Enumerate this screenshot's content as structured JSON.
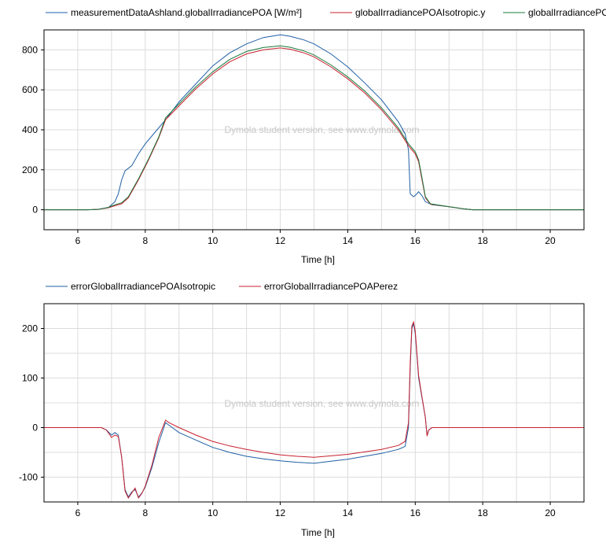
{
  "watermark": "Dymola student version, see www.dymola.com",
  "chart_data": [
    {
      "type": "line",
      "xlabel": "Time [h]",
      "ylabel": "",
      "xlim": [
        5,
        21
      ],
      "ylim": [
        -100,
        900
      ],
      "xticks": [
        6,
        8,
        10,
        12,
        14,
        16,
        18,
        20
      ],
      "yticks": [
        0,
        200,
        400,
        600,
        800
      ],
      "grid": true,
      "legend": "top",
      "series": [
        {
          "name": "measurementDataAshland.globalIrradiancePOA [W/m²]",
          "color": "#1f5fa5",
          "points": [
            [
              5,
              0
            ],
            [
              6.3,
              0
            ],
            [
              6.6,
              2
            ],
            [
              6.9,
              10
            ],
            [
              7.0,
              25
            ],
            [
              7.1,
              40
            ],
            [
              7.2,
              80
            ],
            [
              7.3,
              150
            ],
            [
              7.4,
              195
            ],
            [
              7.6,
              220
            ],
            [
              7.8,
              280
            ],
            [
              8.0,
              330
            ],
            [
              8.3,
              390
            ],
            [
              8.6,
              450
            ],
            [
              9.0,
              540
            ],
            [
              9.5,
              630
            ],
            [
              10.0,
              720
            ],
            [
              10.5,
              785
            ],
            [
              11.0,
              830
            ],
            [
              11.5,
              862
            ],
            [
              12.0,
              875
            ],
            [
              12.3,
              868
            ],
            [
              12.7,
              850
            ],
            [
              13.0,
              830
            ],
            [
              13.5,
              780
            ],
            [
              14.0,
              715
            ],
            [
              14.5,
              635
            ],
            [
              15.0,
              550
            ],
            [
              15.5,
              440
            ],
            [
              15.7,
              380
            ],
            [
              15.8,
              300
            ],
            [
              15.85,
              80
            ],
            [
              15.95,
              65
            ],
            [
              16.05,
              80
            ],
            [
              16.1,
              90
            ],
            [
              16.2,
              70
            ],
            [
              16.3,
              40
            ],
            [
              16.5,
              25
            ],
            [
              17.0,
              15
            ],
            [
              17.4,
              5
            ],
            [
              17.7,
              0
            ],
            [
              21,
              0
            ]
          ]
        },
        {
          "name": "globalIrradiancePOAIsotropic.y",
          "color": "#c8202e",
          "points": [
            [
              5,
              0
            ],
            [
              6.3,
              0
            ],
            [
              6.6,
              2
            ],
            [
              6.9,
              10
            ],
            [
              7.1,
              20
            ],
            [
              7.3,
              30
            ],
            [
              7.5,
              60
            ],
            [
              7.8,
              150
            ],
            [
              8.1,
              250
            ],
            [
              8.4,
              360
            ],
            [
              8.6,
              450
            ],
            [
              9.0,
              520
            ],
            [
              9.5,
              605
            ],
            [
              10.0,
              680
            ],
            [
              10.5,
              740
            ],
            [
              11.0,
              780
            ],
            [
              11.5,
              800
            ],
            [
              12.0,
              810
            ],
            [
              12.3,
              803
            ],
            [
              12.7,
              785
            ],
            [
              13.0,
              765
            ],
            [
              13.5,
              715
            ],
            [
              14.0,
              655
            ],
            [
              14.5,
              585
            ],
            [
              15.0,
              500
            ],
            [
              15.5,
              400
            ],
            [
              15.8,
              320
            ],
            [
              16.0,
              280
            ],
            [
              16.1,
              240
            ],
            [
              16.2,
              150
            ],
            [
              16.3,
              60
            ],
            [
              16.45,
              28
            ],
            [
              17.0,
              15
            ],
            [
              17.4,
              5
            ],
            [
              17.7,
              0
            ],
            [
              21,
              0
            ]
          ]
        },
        {
          "name": "globalIrradiancePOAPerez.y",
          "color": "#1a7a3c",
          "points": [
            [
              5,
              0
            ],
            [
              6.3,
              0
            ],
            [
              6.6,
              2
            ],
            [
              6.9,
              12
            ],
            [
              7.1,
              25
            ],
            [
              7.3,
              35
            ],
            [
              7.5,
              65
            ],
            [
              7.8,
              155
            ],
            [
              8.1,
              255
            ],
            [
              8.4,
              365
            ],
            [
              8.6,
              460
            ],
            [
              9.0,
              530
            ],
            [
              9.5,
              615
            ],
            [
              10.0,
              690
            ],
            [
              10.5,
              752
            ],
            [
              11.0,
              792
            ],
            [
              11.5,
              812
            ],
            [
              12.0,
              820
            ],
            [
              12.3,
              813
            ],
            [
              12.7,
              795
            ],
            [
              13.0,
              775
            ],
            [
              13.5,
              725
            ],
            [
              14.0,
              665
            ],
            [
              14.5,
              595
            ],
            [
              15.0,
              510
            ],
            [
              15.5,
              410
            ],
            [
              15.8,
              330
            ],
            [
              16.0,
              290
            ],
            [
              16.1,
              250
            ],
            [
              16.2,
              160
            ],
            [
              16.3,
              65
            ],
            [
              16.45,
              30
            ],
            [
              17.0,
              15
            ],
            [
              17.4,
              5
            ],
            [
              17.7,
              0
            ],
            [
              21,
              0
            ]
          ]
        }
      ]
    },
    {
      "type": "line",
      "xlabel": "Time [h]",
      "ylabel": "",
      "xlim": [
        5,
        21
      ],
      "ylim": [
        -150,
        250
      ],
      "xticks": [
        6,
        8,
        10,
        12,
        14,
        16,
        18,
        20
      ],
      "yticks": [
        -100,
        0,
        100,
        200
      ],
      "grid": true,
      "legend": "top",
      "series": [
        {
          "name": "errorGlobalIrradiancePOAIsotropic",
          "color": "#1f5fa5",
          "points": [
            [
              5,
              0
            ],
            [
              6.7,
              0
            ],
            [
              6.85,
              -5
            ],
            [
              7.0,
              -15
            ],
            [
              7.1,
              -10
            ],
            [
              7.2,
              -15
            ],
            [
              7.3,
              -60
            ],
            [
              7.4,
              -125
            ],
            [
              7.5,
              -140
            ],
            [
              7.6,
              -130
            ],
            [
              7.7,
              -125
            ],
            [
              7.8,
              -140
            ],
            [
              7.9,
              -132
            ],
            [
              8.0,
              -120
            ],
            [
              8.2,
              -80
            ],
            [
              8.4,
              -30
            ],
            [
              8.6,
              10
            ],
            [
              8.7,
              5
            ],
            [
              9.0,
              -10
            ],
            [
              9.5,
              -25
            ],
            [
              10.0,
              -40
            ],
            [
              10.5,
              -50
            ],
            [
              11.0,
              -58
            ],
            [
              11.5,
              -63
            ],
            [
              12.0,
              -67
            ],
            [
              12.5,
              -70
            ],
            [
              13.0,
              -72
            ],
            [
              13.5,
              -68
            ],
            [
              14.0,
              -64
            ],
            [
              14.5,
              -58
            ],
            [
              15.0,
              -52
            ],
            [
              15.5,
              -44
            ],
            [
              15.7,
              -38
            ],
            [
              15.8,
              0
            ],
            [
              15.85,
              120
            ],
            [
              15.9,
              200
            ],
            [
              15.95,
              210
            ],
            [
              16.0,
              190
            ],
            [
              16.1,
              100
            ],
            [
              16.2,
              60
            ],
            [
              16.3,
              20
            ],
            [
              16.35,
              -15
            ],
            [
              16.4,
              -5
            ],
            [
              16.5,
              0
            ],
            [
              21,
              0
            ]
          ]
        },
        {
          "name": "errorGlobalIrradiancePOAPerez",
          "color": "#c8202e",
          "points": [
            [
              5,
              0
            ],
            [
              6.7,
              0
            ],
            [
              6.85,
              -5
            ],
            [
              7.0,
              -20
            ],
            [
              7.1,
              -15
            ],
            [
              7.2,
              -18
            ],
            [
              7.3,
              -60
            ],
            [
              7.4,
              -128
            ],
            [
              7.5,
              -142
            ],
            [
              7.6,
              -132
            ],
            [
              7.7,
              -122
            ],
            [
              7.8,
              -142
            ],
            [
              7.9,
              -133
            ],
            [
              8.0,
              -118
            ],
            [
              8.2,
              -75
            ],
            [
              8.4,
              -20
            ],
            [
              8.6,
              15
            ],
            [
              8.7,
              10
            ],
            [
              9.0,
              0
            ],
            [
              9.5,
              -15
            ],
            [
              10.0,
              -28
            ],
            [
              10.5,
              -37
            ],
            [
              11.0,
              -44
            ],
            [
              11.5,
              -50
            ],
            [
              12.0,
              -55
            ],
            [
              12.5,
              -58
            ],
            [
              13.0,
              -60
            ],
            [
              13.5,
              -57
            ],
            [
              14.0,
              -54
            ],
            [
              14.5,
              -49
            ],
            [
              15.0,
              -44
            ],
            [
              15.5,
              -36
            ],
            [
              15.7,
              -28
            ],
            [
              15.8,
              10
            ],
            [
              15.85,
              130
            ],
            [
              15.9,
              205
            ],
            [
              15.95,
              213
            ],
            [
              16.0,
              195
            ],
            [
              16.1,
              105
            ],
            [
              16.2,
              62
            ],
            [
              16.3,
              20
            ],
            [
              16.35,
              -17
            ],
            [
              16.4,
              -5
            ],
            [
              16.5,
              0
            ],
            [
              21,
              0
            ]
          ]
        }
      ]
    }
  ]
}
